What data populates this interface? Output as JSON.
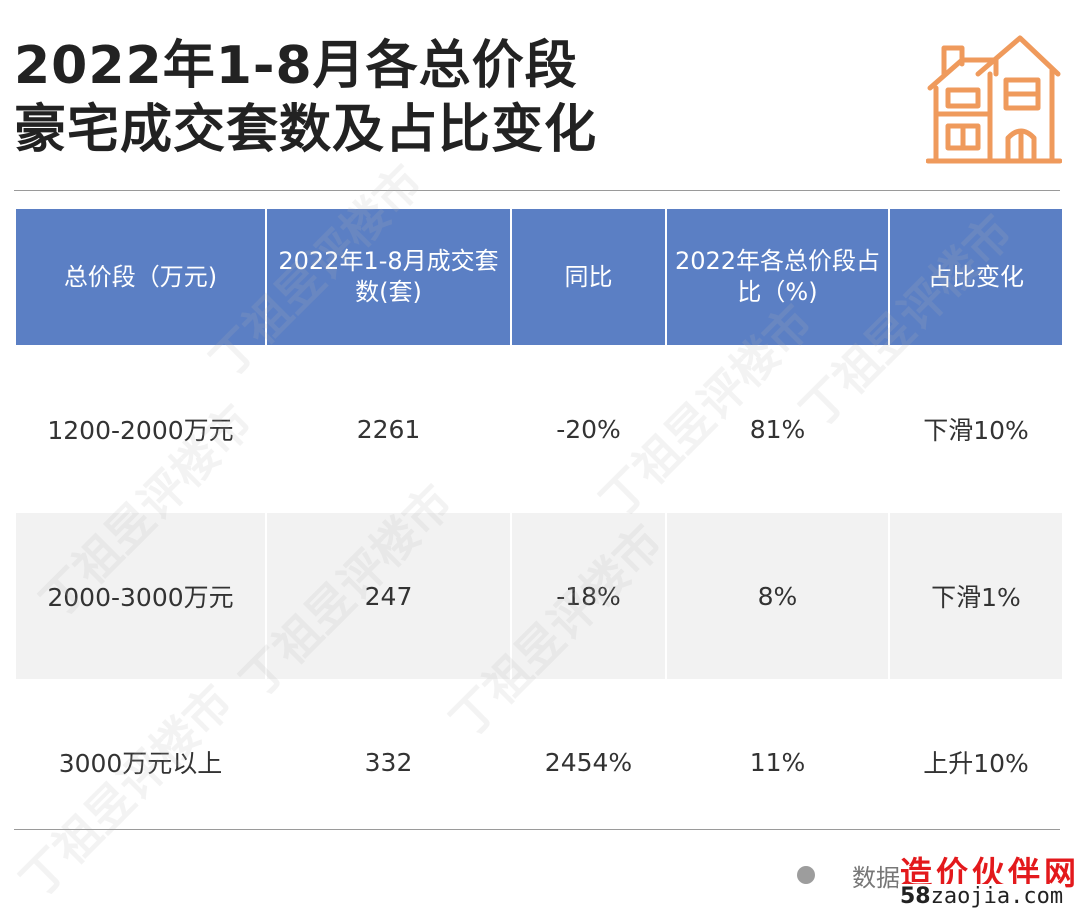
{
  "header": {
    "title_line1": "2022年1-8月各总价段",
    "title_line2": "豪宅成交套数及占比变化",
    "icon": "house-icon",
    "icon_color": "#ef9a5c"
  },
  "table": {
    "header_color": "#5b7fc4",
    "columns": [
      {
        "label": "总价段（万元)"
      },
      {
        "label": "2022年1-8月成交套数(套)"
      },
      {
        "label": "同比"
      },
      {
        "label": "2022年各总价段占比（%)"
      },
      {
        "label": "占比变化"
      }
    ],
    "rows": [
      {
        "range": "1200-2000万元",
        "units": "2261",
        "yoy": "-20%",
        "share": "81%",
        "change": "下滑10%"
      },
      {
        "range": "2000-3000万元",
        "units": "247",
        "yoy": "-18%",
        "share": "8%",
        "change": "下滑1%"
      },
      {
        "range": "3000万元以上",
        "units": "332",
        "yoy": "2454%",
        "share": "11%",
        "change": "上升10%"
      }
    ]
  },
  "watermark": {
    "text": "丁祖昱评楼市"
  },
  "footer": {
    "source_text": "数据",
    "logo_cn": "造价伙伴网",
    "logo_url_num": "58",
    "logo_url_rest": "zaojia.com",
    "logo_color": "#e3191c"
  }
}
